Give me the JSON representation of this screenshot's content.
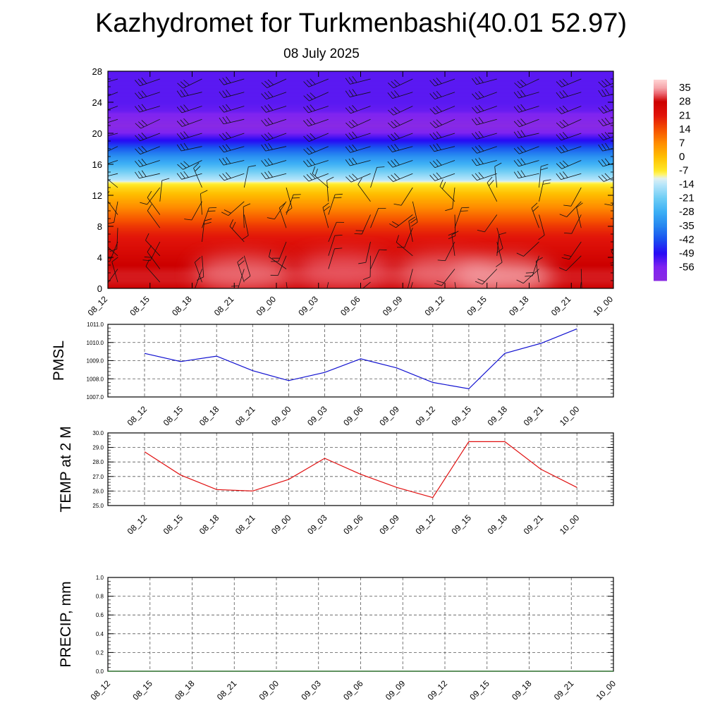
{
  "header": {
    "title": "Kazhydromet for Turkmenbashi(40.01 52.97)",
    "date": "08 July 2025"
  },
  "colors": {
    "pmsl_line": "#1010d0",
    "temp_line": "#e01010",
    "precip_line": "#207020",
    "grid": "#555555",
    "axis": "#000000"
  },
  "chart_data": [
    {
      "id": "cross_section",
      "type": "heatmap",
      "x_ticks": [
        "08_12",
        "08_15",
        "08_18",
        "08_21",
        "09_00",
        "09_03",
        "09_06",
        "09_09",
        "09_12",
        "09_15",
        "09_18",
        "09_21",
        "10_00"
      ],
      "y_ticks": [
        0,
        4,
        8,
        12,
        16,
        20,
        24,
        28
      ],
      "ylim": [
        0,
        28
      ],
      "colorbar": {
        "labels": [
          35,
          28,
          21,
          14,
          7,
          0,
          -7,
          -14,
          -21,
          -28,
          -35,
          -42,
          -49,
          -56
        ],
        "range": [
          -63,
          39
        ]
      },
      "temperature_profile": [
        {
          "h": 0,
          "t": 28
        },
        {
          "h": 1,
          "t": 29
        },
        {
          "h": 2,
          "t": 29
        },
        {
          "h": 3,
          "t": 28
        },
        {
          "h": 4,
          "t": 26
        },
        {
          "h": 5,
          "t": 24
        },
        {
          "h": 6,
          "t": 22
        },
        {
          "h": 7,
          "t": 20
        },
        {
          "h": 8,
          "t": 17
        },
        {
          "h": 9,
          "t": 13
        },
        {
          "h": 10,
          "t": 9
        },
        {
          "h": 11,
          "t": 5
        },
        {
          "h": 12,
          "t": 1
        },
        {
          "h": 13,
          "t": -4
        },
        {
          "h": 13.7,
          "t": -9
        },
        {
          "h": 14,
          "t": -14
        },
        {
          "h": 15,
          "t": -20
        },
        {
          "h": 16,
          "t": -27
        },
        {
          "h": 17,
          "t": -33
        },
        {
          "h": 18,
          "t": -40
        },
        {
          "h": 19,
          "t": -48
        },
        {
          "h": 20,
          "t": -55
        },
        {
          "h": 21,
          "t": -62
        },
        {
          "h": 22,
          "t": -58
        },
        {
          "h": 23,
          "t": -54
        },
        {
          "h": 24,
          "t": -53
        },
        {
          "h": 28,
          "t": -53
        }
      ],
      "warm_cores": [
        {
          "x": 3.2,
          "h": 2.0,
          "t": 33
        },
        {
          "x": 5.6,
          "h": 2.3,
          "t": 32
        },
        {
          "x": 8.0,
          "h": 2.1,
          "t": 33
        },
        {
          "x": 9.4,
          "h": 1.6,
          "t": 35
        }
      ],
      "barb_levels": [
        0.8,
        2.5,
        4.2,
        6.0,
        7.8,
        9.5,
        11.2,
        13.0,
        14.8,
        16.5,
        18.3,
        20.0,
        21.8,
        23.5,
        25.3,
        27.0
      ]
    },
    {
      "id": "pmsl",
      "type": "line",
      "ylabel": "PMSL",
      "x": [
        "08_12",
        "08_15",
        "08_18",
        "08_21",
        "09_00",
        "09_03",
        "09_06",
        "09_09",
        "09_12",
        "09_15",
        "09_18",
        "09_21",
        "10_00"
      ],
      "y": [
        1009.4,
        1008.95,
        1009.25,
        1008.45,
        1007.9,
        1008.35,
        1009.1,
        1008.6,
        1007.8,
        1007.45,
        1009.4,
        1009.95,
        1010.75
      ],
      "ylim": [
        1007.0,
        1011.0
      ],
      "y_ticks": [
        "1007.0",
        "1008.0",
        "1009.0",
        "1010.0",
        "1011.0"
      ]
    },
    {
      "id": "temp2m",
      "type": "line",
      "ylabel": "TEMP at 2 M",
      "x": [
        "08_12",
        "08_15",
        "08_18",
        "08_21",
        "09_00",
        "09_03",
        "09_06",
        "09_09",
        "09_12",
        "09_15",
        "09_18",
        "09_21",
        "10_00"
      ],
      "y": [
        28.7,
        27.1,
        26.1,
        26.0,
        26.8,
        28.25,
        27.15,
        26.25,
        25.55,
        29.4,
        29.4,
        27.5,
        26.25
      ],
      "ylim": [
        25.0,
        30.0
      ],
      "y_ticks": [
        "25.0",
        "26.0",
        "27.0",
        "28.0",
        "29.0",
        "30.0"
      ]
    },
    {
      "id": "precip",
      "type": "line",
      "ylabel": "PRECIP, mm",
      "x": [
        "08_12",
        "08_15",
        "08_18",
        "08_21",
        "09_00",
        "09_03",
        "09_06",
        "09_09",
        "09_12",
        "09_15",
        "09_18",
        "09_21",
        "10_00"
      ],
      "y": [
        0,
        0,
        0,
        0,
        0,
        0,
        0,
        0,
        0,
        0,
        0,
        0,
        0
      ],
      "ylim": [
        0.0,
        1.0
      ],
      "y_ticks": [
        "0.0",
        "0.2",
        "0.4",
        "0.6",
        "0.8",
        "1.0"
      ]
    }
  ]
}
